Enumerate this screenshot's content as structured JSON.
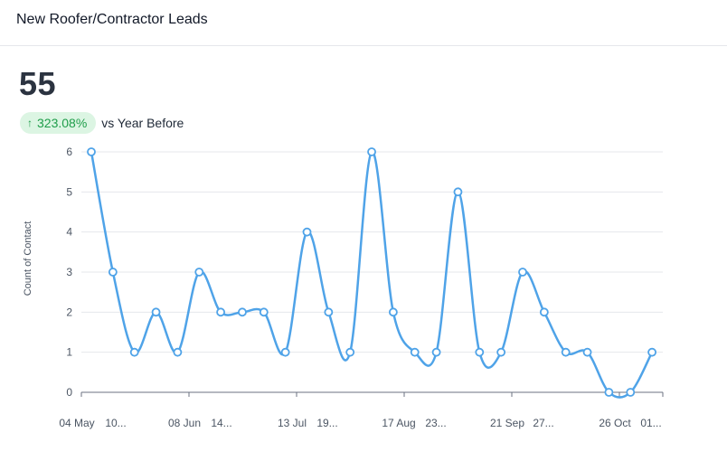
{
  "header": {
    "title": "New Roofer/Contractor Leads"
  },
  "metric": {
    "value": "55",
    "change": "323.08%",
    "change_arrow": "↑",
    "compare_label": "vs Year Before",
    "badge_bg": "#dcf5e3",
    "badge_color": "#1f9d4a"
  },
  "chart_data": {
    "type": "line",
    "title": "",
    "xlabel": "",
    "ylabel": "Count of Contact",
    "ylim": [
      0,
      6
    ],
    "yticks": [
      0,
      1,
      2,
      3,
      4,
      5,
      6
    ],
    "grid": true,
    "line_color": "#4fa3e8",
    "x_tick_labels": [
      "04 May",
      "10...",
      "08 Jun",
      "14...",
      "13 Jul",
      "19...",
      "17 Aug",
      "23...",
      "21 Sep",
      "27...",
      "26 Oct",
      "01..."
    ],
    "series": [
      {
        "values": [
          6,
          3,
          1,
          2,
          1,
          3,
          2,
          2,
          2,
          1,
          4,
          2,
          1,
          6,
          2,
          1,
          1,
          5,
          1,
          1,
          3,
          2,
          1,
          1,
          0,
          0,
          1
        ]
      }
    ]
  }
}
